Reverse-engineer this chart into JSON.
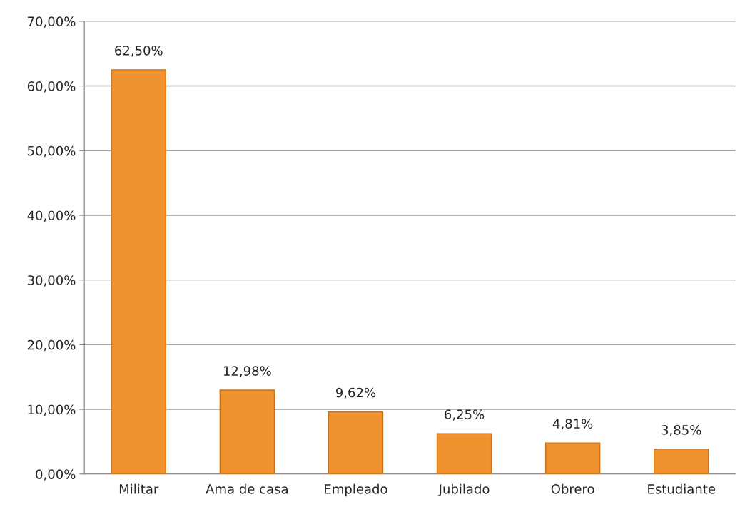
{
  "chart_data": {
    "type": "bar",
    "categories": [
      "Militar",
      "Ama de casa",
      "Empleado",
      "Jubilado",
      "Obrero",
      "Estudiante"
    ],
    "values": [
      62.5,
      12.98,
      9.62,
      6.25,
      4.81,
      3.85
    ],
    "value_labels": [
      "62,50%",
      "12,98%",
      "9,62%",
      "6,25%",
      "4,81%",
      "3,85%"
    ],
    "color": "#f0922e",
    "ylim": [
      0,
      70
    ],
    "yticks": [
      {
        "value": 0,
        "label": "0,00%"
      },
      {
        "value": 10,
        "label": "10,00%"
      },
      {
        "value": 20,
        "label": "20,00%"
      },
      {
        "value": 30,
        "label": "30,00%"
      },
      {
        "value": 40,
        "label": "40,00%"
      },
      {
        "value": 50,
        "label": "50,00%"
      },
      {
        "value": 60,
        "label": "60,00%"
      },
      {
        "value": 70,
        "label": "70,00%"
      }
    ],
    "grid": "y"
  }
}
